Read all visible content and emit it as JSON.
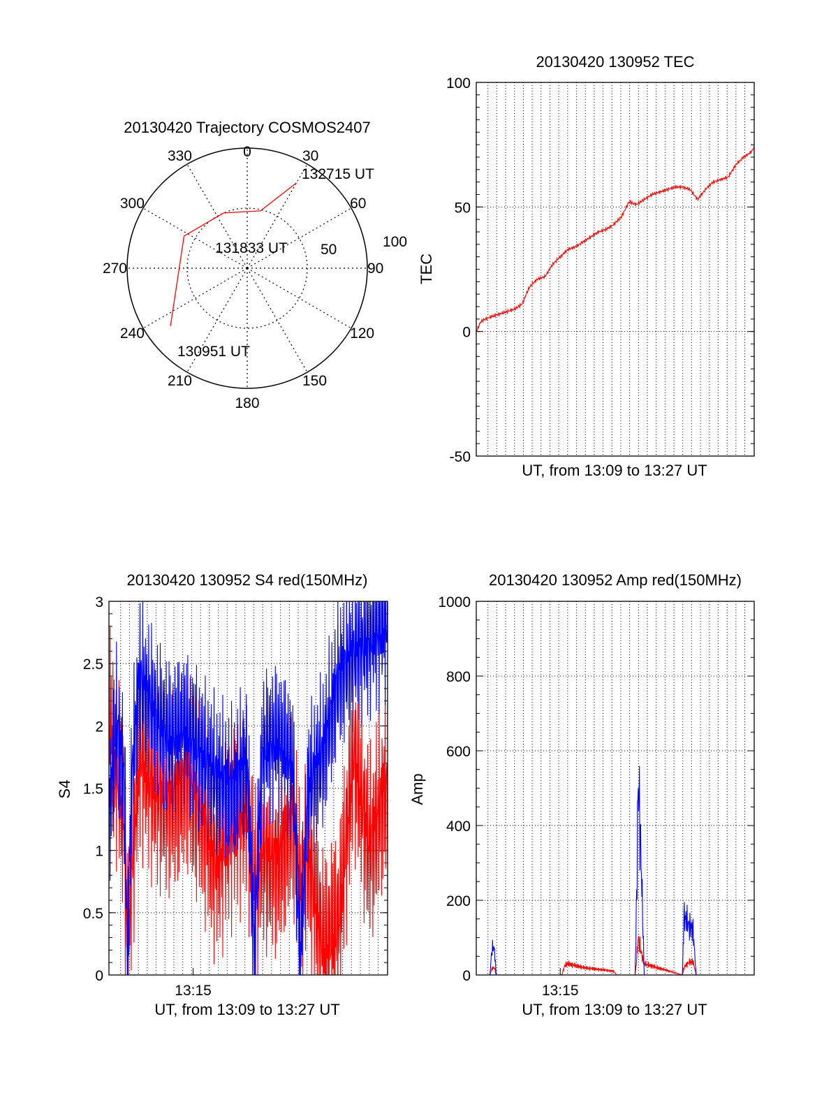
{
  "colors": {
    "red": "#ff0000",
    "blue": "#0000ff",
    "axis": "#000000",
    "grid": "#000000"
  },
  "chart_data": [
    {
      "type": "polar",
      "title": "20130420 Trajectory COSMOS2407",
      "azimuth_labels": [
        "0",
        "30",
        "60",
        "90",
        "120",
        "150",
        "180",
        "210",
        "240",
        "270",
        "300",
        "330"
      ],
      "radial_labels": [
        "50",
        "100"
      ],
      "grid": "dotted",
      "track": {
        "color": "red",
        "points": [
          {
            "az": 30,
            "r": 82
          },
          {
            "az": 13,
            "r": 49
          },
          {
            "az": 337,
            "r": 50
          },
          {
            "az": 297,
            "r": 59
          },
          {
            "az": 233,
            "r": 80
          }
        ],
        "labels": [
          {
            "text": "132715 UT",
            "az": 30,
            "r": 82
          },
          {
            "text": "131833 UT",
            "az": 330,
            "r": 30
          },
          {
            "text": "130951 UT",
            "az": 233,
            "r": 80
          }
        ]
      }
    },
    {
      "type": "line",
      "title": "20130420 130952 TEC",
      "xlabel": "UT, from 13:09 to 13:27 UT",
      "ylabel": "TEC",
      "xlim": [
        0,
        18.2
      ],
      "ylim": [
        -50,
        100
      ],
      "yticks": [
        -50,
        0,
        50,
        100
      ],
      "xticks": [],
      "grid": "dotted vertical every ~0.6 min, horizontal at major y ticks",
      "series": [
        {
          "color": "red",
          "x": [
            0,
            0.3,
            0.6,
            1,
            1.5,
            2,
            2.5,
            3,
            3.2,
            3.5,
            4,
            4.5,
            5,
            5.5,
            6,
            6.5,
            7,
            7.5,
            8,
            8.5,
            9,
            9.5,
            10,
            10.5,
            11,
            11.5,
            12,
            12.5,
            13,
            13.5,
            14,
            14.5,
            15,
            15.5,
            16,
            16.5,
            17,
            17.5,
            18,
            18.2
          ],
          "y": [
            0,
            4,
            5,
            6,
            7,
            8,
            9,
            11,
            14,
            18,
            21,
            22,
            27,
            30,
            33,
            34,
            36,
            38,
            40,
            41,
            43,
            46,
            52,
            51,
            53,
            55,
            56,
            57,
            58,
            58,
            57,
            53,
            57,
            60,
            61,
            62,
            67,
            70,
            72,
            74
          ]
        }
      ]
    },
    {
      "type": "line",
      "title": "20130420 130952 S4 red(150MHz)",
      "xlabel": "UT, from 13:09 to 13:27 UT",
      "ylabel": "S4",
      "xlim": [
        0,
        18.2
      ],
      "ylim": [
        0,
        3
      ],
      "yticks": [
        "0",
        "0.5",
        "1",
        "1.5",
        "2",
        "2.5",
        "3"
      ],
      "xticks": [
        {
          "value": 5.5,
          "label": "13:15"
        }
      ],
      "series": [
        {
          "color": "red",
          "x": [
            0,
            0.5,
            1,
            1.2,
            1.5,
            2,
            3,
            4,
            5,
            6,
            7,
            8,
            9,
            9.5,
            10,
            11,
            12,
            12.5,
            13,
            14,
            15,
            16,
            17,
            18
          ],
          "y": [
            2.0,
            1.7,
            1.2,
            0.15,
            0.9,
            1.8,
            1.5,
            1.4,
            1.6,
            1.3,
            0.9,
            1.2,
            1.4,
            0.7,
            1.0,
            0.9,
            1.3,
            0.6,
            1.0,
            0.2,
            0.4,
            1.8,
            1.0,
            1.5
          ]
        },
        {
          "color": "blue",
          "x": [
            0,
            0.5,
            1,
            1.2,
            1.5,
            2,
            3,
            4,
            5,
            6,
            7,
            8,
            9,
            9.5,
            10,
            11,
            12,
            12.5,
            13,
            14,
            15,
            16,
            17,
            18
          ],
          "y": [
            1.3,
            2.0,
            1.6,
            0.2,
            1.6,
            2.4,
            2.1,
            1.9,
            2.0,
            1.8,
            1.6,
            1.5,
            1.7,
            0.2,
            1.8,
            1.9,
            1.7,
            0.15,
            1.5,
            1.8,
            2.4,
            2.6,
            2.7,
            2.8
          ]
        }
      ]
    },
    {
      "type": "line",
      "title": "20130420 130952 Amp red(150MHz)",
      "xlabel": "UT, from 13:09 to 13:27 UT",
      "ylabel": "Amp",
      "xlim": [
        0,
        18.2
      ],
      "ylim": [
        0,
        1000
      ],
      "yticks": [
        0,
        200,
        400,
        600,
        800,
        1000
      ],
      "xticks": [
        {
          "value": 5.5,
          "label": "13:15"
        }
      ],
      "series": [
        {
          "color": "red",
          "x": [
            0,
            0.9,
            1.0,
            1.1,
            1.2,
            1.3,
            5.6,
            5.8,
            6,
            7,
            8,
            9,
            9.2,
            10.4,
            10.5,
            10.6,
            10.8,
            11,
            13.5,
            13.6,
            13.8,
            14,
            14.2,
            14.4,
            18.2
          ],
          "y": [
            0,
            0,
            15,
            20,
            18,
            0,
            0,
            25,
            30,
            20,
            15,
            10,
            0,
            0,
            40,
            100,
            60,
            30,
            0,
            20,
            30,
            35,
            35,
            0,
            0
          ]
        },
        {
          "color": "blue",
          "x": [
            0,
            0.9,
            1.0,
            1.1,
            1.2,
            1.3,
            10.4,
            10.5,
            10.6,
            10.7,
            10.8,
            11,
            13.5,
            13.6,
            13.8,
            14,
            14.2,
            14.4,
            18.2
          ],
          "y": [
            0,
            0,
            60,
            75,
            65,
            0,
            0,
            200,
            520,
            430,
            300,
            0,
            0,
            160,
            140,
            130,
            120,
            0,
            0
          ]
        }
      ]
    }
  ]
}
